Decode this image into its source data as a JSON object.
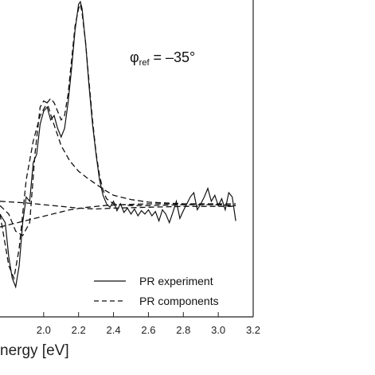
{
  "chart_data": {
    "type": "line",
    "xlabel": "nergy [eV]",
    "xlim": [
      1.75,
      3.2
    ],
    "ylim": [
      -1.3,
      2.4
    ],
    "xticks": [
      "2.0",
      "2.2",
      "2.4",
      "2.6",
      "2.8",
      "3.0",
      "3.2"
    ],
    "xtick_values": [
      2.0,
      2.2,
      2.4,
      2.6,
      2.8,
      3.0,
      3.2
    ],
    "annotation": {
      "main": "φ",
      "sub": "ref",
      "value": " = –35°"
    },
    "legend": {
      "position": "bottom-right",
      "entries": [
        {
          "label": "PR experiment",
          "style": "solid"
        },
        {
          "label": "PR components",
          "style": "dashed"
        }
      ]
    },
    "series": [
      {
        "style": "solid",
        "points": [
          [
            1.75,
            -0.1
          ],
          [
            1.78,
            -0.2
          ],
          [
            1.8,
            -0.6
          ],
          [
            1.82,
            -0.85
          ],
          [
            1.84,
            -0.95
          ],
          [
            1.86,
            -0.7
          ],
          [
            1.88,
            -0.2
          ],
          [
            1.9,
            0.1
          ],
          [
            1.92,
            0.05
          ],
          [
            1.94,
            0.5
          ],
          [
            1.96,
            0.6
          ],
          [
            1.98,
            0.95
          ],
          [
            2.0,
            1.1
          ],
          [
            2.02,
            1.15
          ],
          [
            2.04,
            1.0
          ],
          [
            2.06,
            1.05
          ],
          [
            2.08,
            0.9
          ],
          [
            2.1,
            0.8
          ],
          [
            2.12,
            0.9
          ],
          [
            2.14,
            1.2
          ],
          [
            2.16,
            1.6
          ],
          [
            2.18,
            2.05
          ],
          [
            2.2,
            2.35
          ],
          [
            2.21,
            2.38
          ],
          [
            2.22,
            2.3
          ],
          [
            2.24,
            1.9
          ],
          [
            2.26,
            1.4
          ],
          [
            2.28,
            0.95
          ],
          [
            2.3,
            0.6
          ],
          [
            2.32,
            0.3
          ],
          [
            2.34,
            0.12
          ],
          [
            2.36,
            0.02
          ],
          [
            2.38,
            -0.02
          ],
          [
            2.4,
            0.05
          ],
          [
            2.42,
            -0.06
          ],
          [
            2.44,
            0.02
          ],
          [
            2.46,
            -0.08
          ],
          [
            2.48,
            -0.03
          ],
          [
            2.5,
            -0.1
          ],
          [
            2.52,
            -0.04
          ],
          [
            2.54,
            -0.12
          ],
          [
            2.56,
            -0.06
          ],
          [
            2.58,
            -0.1
          ],
          [
            2.6,
            -0.05
          ],
          [
            2.62,
            -0.12
          ],
          [
            2.64,
            -0.07
          ],
          [
            2.66,
            -0.18
          ],
          [
            2.68,
            -0.05
          ],
          [
            2.7,
            -0.1
          ],
          [
            2.72,
            -0.2
          ],
          [
            2.74,
            -0.08
          ],
          [
            2.76,
            0.05
          ],
          [
            2.78,
            -0.15
          ],
          [
            2.8,
            -0.06
          ],
          [
            2.82,
            0.02
          ],
          [
            2.84,
            0.1
          ],
          [
            2.86,
            0.15
          ],
          [
            2.88,
            -0.05
          ],
          [
            2.9,
            0.02
          ],
          [
            2.92,
            0.1
          ],
          [
            2.94,
            0.2
          ],
          [
            2.96,
            0.05
          ],
          [
            2.98,
            0.12
          ],
          [
            3.0,
            0.0
          ],
          [
            3.02,
            0.08
          ],
          [
            3.04,
            -0.05
          ],
          [
            3.06,
            0.15
          ],
          [
            3.08,
            0.1
          ],
          [
            3.1,
            -0.18
          ]
        ]
      },
      {
        "style": "dashed",
        "points": [
          [
            1.75,
            -0.1
          ],
          [
            1.8,
            -0.7
          ],
          [
            1.83,
            -0.85
          ],
          [
            1.86,
            -0.5
          ],
          [
            1.9,
            0.3
          ],
          [
            1.94,
            0.75
          ],
          [
            1.98,
            1.05
          ],
          [
            2.02,
            1.2
          ],
          [
            2.04,
            1.25
          ],
          [
            2.06,
            1.2
          ],
          [
            2.08,
            1.1
          ],
          [
            2.1,
            1.0
          ],
          [
            2.12,
            1.05
          ],
          [
            2.14,
            1.3
          ],
          [
            2.16,
            1.7
          ],
          [
            2.18,
            2.1
          ],
          [
            2.2,
            2.3
          ],
          [
            2.21,
            2.35
          ],
          [
            2.22,
            2.25
          ],
          [
            2.24,
            1.9
          ],
          [
            2.26,
            1.45
          ],
          [
            2.28,
            1.0
          ],
          [
            2.3,
            0.62
          ],
          [
            2.32,
            0.35
          ],
          [
            2.34,
            0.18
          ],
          [
            2.36,
            0.08
          ],
          [
            2.4,
            0.02
          ],
          [
            2.5,
            0.0
          ],
          [
            2.6,
            0.0
          ],
          [
            2.8,
            0.01
          ],
          [
            3.0,
            0.01
          ],
          [
            3.1,
            0.0
          ]
        ]
      },
      {
        "style": "dashed",
        "points": [
          [
            1.75,
            0.0
          ],
          [
            1.8,
            -0.1
          ],
          [
            1.84,
            -0.3
          ],
          [
            1.88,
            -0.35
          ],
          [
            1.92,
            -0.2
          ],
          [
            1.95,
            0.6
          ],
          [
            1.98,
            1.15
          ],
          [
            2.0,
            1.22
          ],
          [
            2.02,
            1.2
          ],
          [
            2.05,
            1.0
          ],
          [
            2.1,
            0.7
          ],
          [
            2.15,
            0.52
          ],
          [
            2.2,
            0.4
          ],
          [
            2.25,
            0.32
          ],
          [
            2.3,
            0.25
          ],
          [
            2.35,
            0.18
          ],
          [
            2.4,
            0.12
          ],
          [
            2.5,
            0.07
          ],
          [
            2.6,
            0.04
          ],
          [
            2.8,
            0.02
          ],
          [
            3.0,
            0.01
          ],
          [
            3.1,
            0.0
          ]
        ]
      },
      {
        "style": "dashed",
        "points": [
          [
            1.75,
            0.05
          ],
          [
            1.9,
            0.03
          ],
          [
            2.0,
            0.01
          ],
          [
            2.1,
            -0.01
          ],
          [
            2.2,
            -0.03
          ],
          [
            2.3,
            -0.04
          ],
          [
            2.4,
            -0.03
          ],
          [
            2.6,
            -0.02
          ],
          [
            2.8,
            -0.01
          ],
          [
            3.0,
            -0.01
          ],
          [
            3.1,
            -0.01
          ]
        ]
      },
      {
        "style": "dashed",
        "points": [
          [
            1.75,
            -0.25
          ],
          [
            1.85,
            -0.2
          ],
          [
            1.95,
            -0.15
          ],
          [
            2.05,
            -0.1
          ],
          [
            2.15,
            -0.05
          ],
          [
            2.25,
            -0.02
          ],
          [
            2.35,
            0.0
          ],
          [
            2.45,
            0.01
          ],
          [
            2.6,
            0.02
          ],
          [
            2.8,
            0.02
          ],
          [
            3.0,
            0.02
          ],
          [
            3.1,
            0.02
          ]
        ]
      }
    ]
  }
}
